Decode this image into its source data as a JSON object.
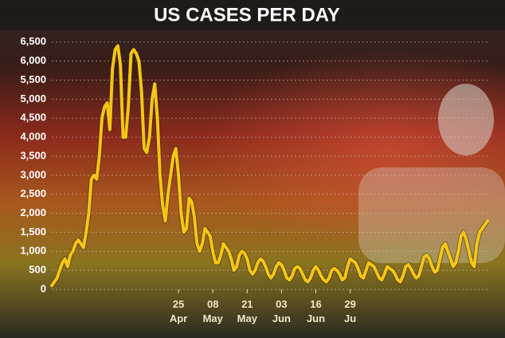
{
  "chart_data": {
    "type": "line",
    "title": "US CASES PER DAY",
    "series": [
      {
        "color": "#f5c518",
        "values": [
          100,
          200,
          300,
          500,
          700,
          800,
          600,
          900,
          1000,
          1200,
          1300,
          1200,
          1100,
          1500,
          2000,
          2900,
          3000,
          2900,
          3500,
          4500,
          4800,
          4900,
          4200,
          5800,
          6300,
          6400,
          5900,
          4000,
          4000,
          4800,
          6200,
          6300,
          6200,
          6000,
          5200,
          3700,
          3600,
          4000,
          5000,
          5400,
          4500,
          3000,
          2200,
          1800,
          2500,
          3000,
          3500,
          3700,
          3000,
          2000,
          1500,
          1600,
          2400,
          2300,
          1900,
          1200,
          1000,
          1200,
          1600,
          1500,
          1400,
          1000,
          700,
          700,
          900,
          1200,
          1100,
          1000,
          800,
          500,
          600,
          900,
          1000,
          950,
          800,
          500,
          400,
          500,
          700,
          800,
          750,
          600,
          400,
          300,
          400,
          600,
          700,
          650,
          500,
          300,
          250,
          350,
          550,
          600,
          550,
          400,
          250,
          200,
          300,
          500,
          600,
          500,
          350,
          250,
          200,
          300,
          500,
          550,
          500,
          400,
          250,
          300,
          600,
          800,
          750,
          700,
          550,
          350,
          300,
          500,
          700,
          650,
          600,
          450,
          300,
          250,
          400,
          600,
          550,
          500,
          400,
          250,
          200,
          350,
          600,
          650,
          550,
          400,
          300,
          350,
          600,
          850,
          900,
          800,
          600,
          450,
          500,
          800,
          1100,
          1200,
          1000,
          800,
          600,
          700,
          1000,
          1400,
          1500,
          1300,
          1000,
          700,
          600,
          1200,
          1500,
          1600,
          1700,
          1800
        ]
      }
    ],
    "xticks": [
      {
        "value": 48,
        "label": "25 Apr"
      },
      {
        "value": 61,
        "label": "08 May"
      },
      {
        "value": 74,
        "label": "21 May"
      },
      {
        "value": 87,
        "label": "03 Jun"
      },
      {
        "value": 100,
        "label": "16 Jun"
      },
      {
        "value": 113,
        "label": "29 Ju"
      }
    ],
    "ylim": [
      0,
      6600
    ],
    "yticks": [
      0,
      500,
      {
        "value": 1000,
        "label": "1,000"
      },
      {
        "value": 1500,
        "label": "1,500"
      },
      {
        "value": 2000,
        "label": "2,000"
      },
      {
        "value": 2500,
        "label": "2,500"
      },
      {
        "value": 3000,
        "label": "3,000"
      },
      {
        "value": 3500,
        "label": "3,500"
      },
      {
        "value": 4000,
        "label": "4,000"
      },
      {
        "value": 4500,
        "label": "4,500"
      },
      {
        "value": 5000,
        "label": "5,000"
      },
      {
        "value": 5500,
        "label": "5,500"
      },
      {
        "value": 6000,
        "label": "6,000"
      },
      {
        "value": 6500,
        "label": "6,500"
      }
    ],
    "grid": true
  }
}
